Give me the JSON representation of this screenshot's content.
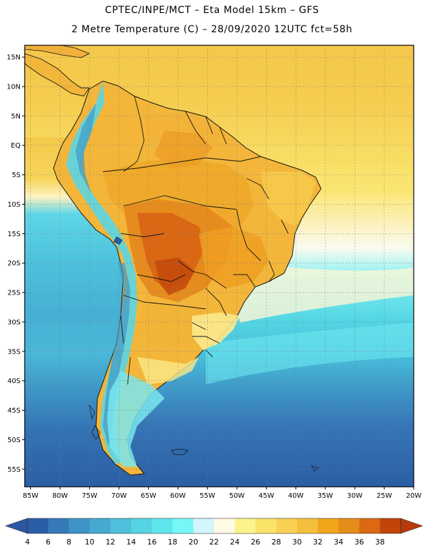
{
  "title": {
    "line1": "CPTEC/INPE/MCT –  Eta Model 15km – GFS",
    "line2": "2 Metre Temperature (C) – 28/09/2020 12UTC fct=58h"
  },
  "map": {
    "lat_labels": [
      "15N",
      "10N",
      "5N",
      "EQ",
      "5S",
      "10S",
      "15S",
      "20S",
      "25S",
      "30S",
      "35S",
      "40S",
      "45S",
      "50S",
      "55S"
    ],
    "lon_labels": [
      "85W",
      "80W",
      "75W",
      "70W",
      "65W",
      "60W",
      "55W",
      "50W",
      "45W",
      "40W",
      "35W",
      "30W",
      "25W",
      "20W"
    ],
    "lat_values": [
      15,
      10,
      5,
      0,
      -5,
      -10,
      -15,
      -20,
      -25,
      -30,
      -35,
      -40,
      -45,
      -50,
      -55
    ],
    "lon_values": [
      -85,
      -80,
      -75,
      -70,
      -65,
      -60,
      -55,
      -50,
      -45,
      -40,
      -35,
      -30,
      -25,
      -20
    ],
    "extent": {
      "lon_min": -86,
      "lon_max": -20,
      "lat_min": -58,
      "lat_max": 17
    }
  },
  "colorbar": {
    "labels": [
      "4",
      "6",
      "8",
      "10",
      "12",
      "14",
      "16",
      "18",
      "20",
      "22",
      "24",
      "26",
      "28",
      "30",
      "32",
      "34",
      "36",
      "38"
    ],
    "colors": [
      "#2a5ea4",
      "#3679b8",
      "#3f93c7",
      "#45a9d2",
      "#4ec0dc",
      "#56d3e2",
      "#5fe6ec",
      "#77f7f7",
      "#d2f6fb",
      "#fffbe6",
      "#fcf38c",
      "#fbe36a",
      "#f8d154",
      "#f5bf3e",
      "#f1a51a",
      "#e68c1b",
      "#db6813",
      "#c14409"
    ],
    "low_color": "#2b58a0",
    "high_color": "#b83a0a"
  }
}
